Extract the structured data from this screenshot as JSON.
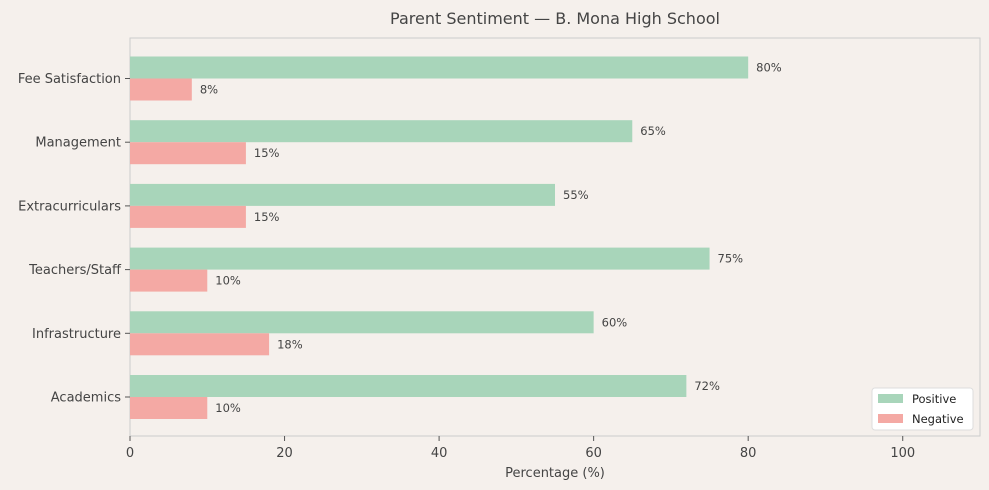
{
  "chart_data": {
    "type": "bar",
    "orientation": "horizontal",
    "title": "Parent Sentiment — B. Mona High School",
    "xlabel": "Percentage (%)",
    "ylabel": "",
    "xlim": [
      0,
      110
    ],
    "xticks": [
      0,
      20,
      40,
      60,
      80,
      100
    ],
    "categories": [
      "Fee Satisfaction",
      "Management",
      "Extracurriculars",
      "Teachers/Staff",
      "Infrastructure",
      "Academics"
    ],
    "series": [
      {
        "name": "Positive",
        "color": "#a8d5ba",
        "values": [
          80,
          65,
          55,
          75,
          60,
          72
        ]
      },
      {
        "name": "Negative",
        "color": "#f4a9a4",
        "values": [
          8,
          15,
          15,
          10,
          18,
          10
        ]
      }
    ],
    "value_suffix": "%",
    "grid": false,
    "legend_position": "bottom-right"
  }
}
